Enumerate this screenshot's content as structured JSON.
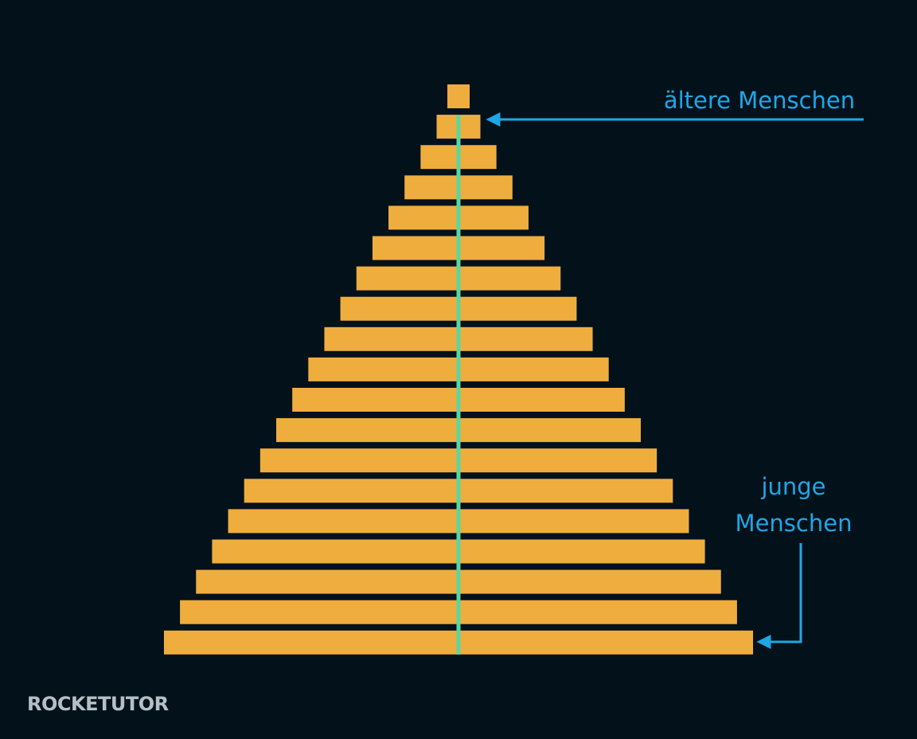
{
  "labels": {
    "old": "ältere Menschen",
    "young": [
      "junge",
      "Menschen"
    ]
  },
  "logo": "ROCKETUTOR"
}
